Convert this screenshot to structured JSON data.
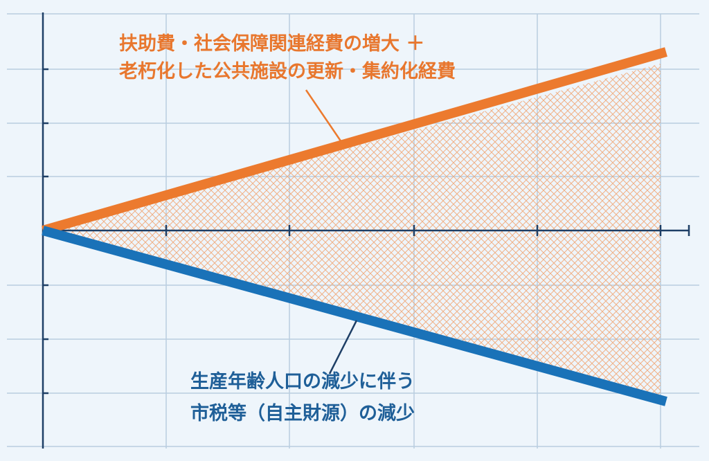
{
  "labels": {
    "upper": [
      "扶助費・社会保障関連経費の増大 ＋",
      "老朽化した公共施設の更新・集約化経費"
    ],
    "lower": [
      "生産年齢人口の減少に伴う",
      "市税等（自主財源）の減少"
    ]
  }
}
